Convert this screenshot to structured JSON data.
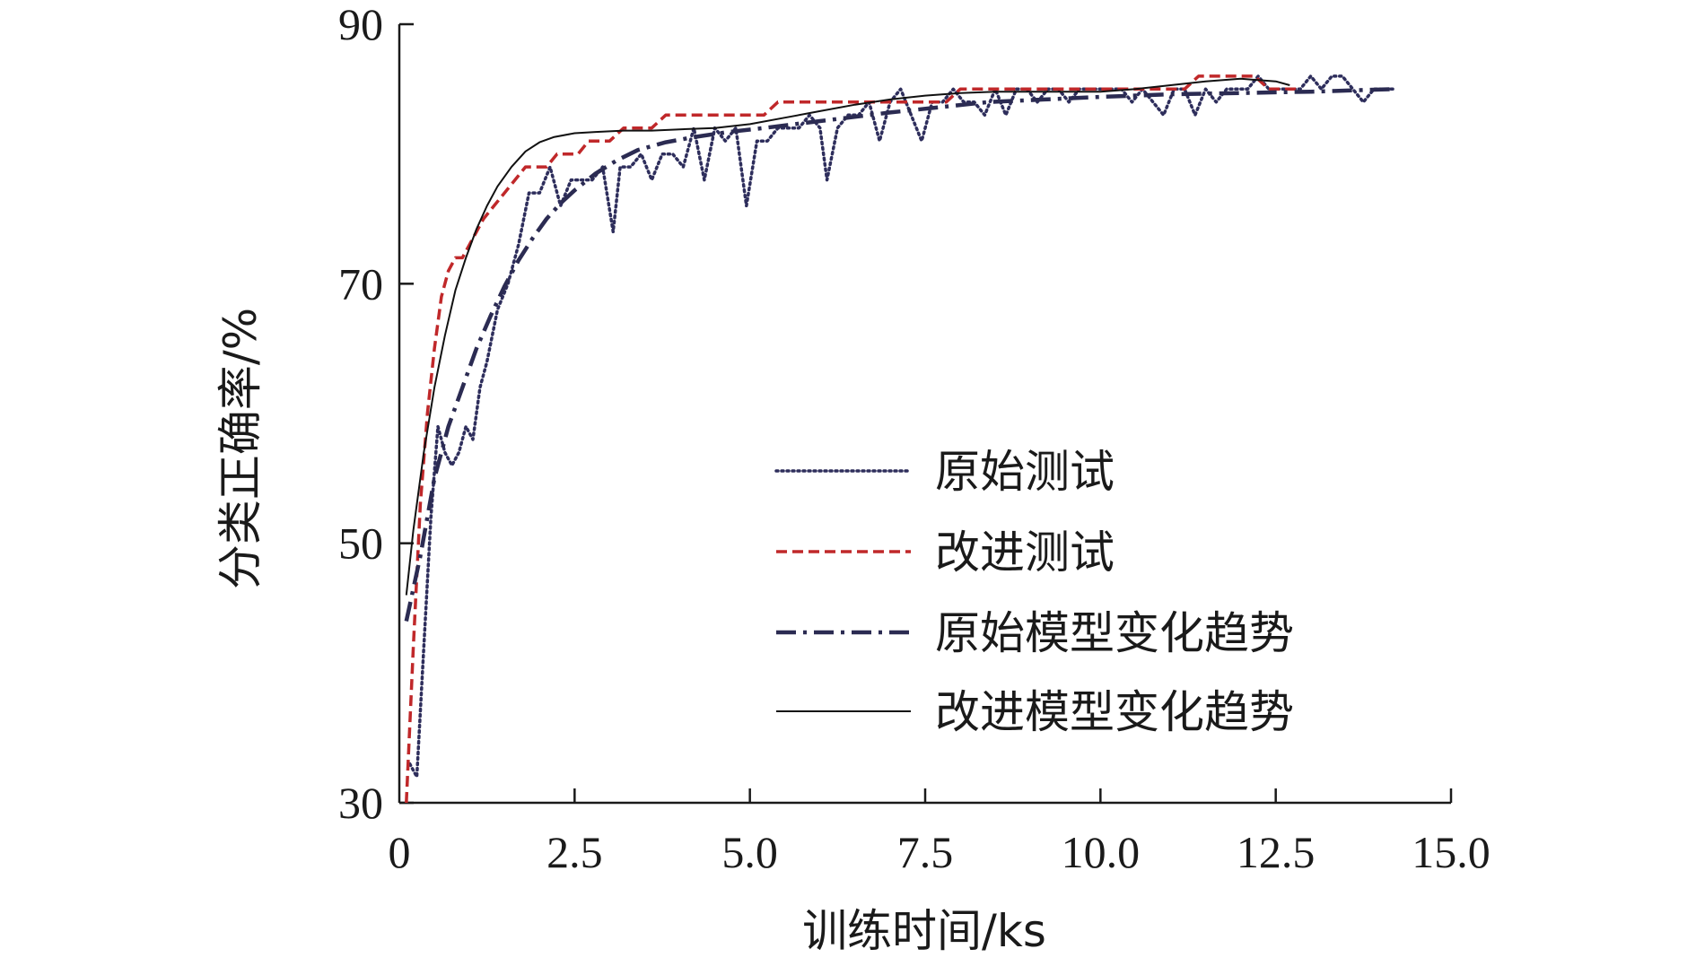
{
  "chart_data": {
    "type": "line",
    "title": "",
    "xlabel": "训练时间/ks",
    "ylabel": "分类正确率/%",
    "xlim": [
      0,
      15
    ],
    "ylim": [
      30,
      90
    ],
    "x_ticks": [
      0,
      2.5,
      5,
      7.5,
      10,
      12.5,
      15
    ],
    "x_tick_labels": [
      "0",
      "2.5",
      "5.0",
      "7.5",
      "10.0",
      "12.5",
      "15.0"
    ],
    "y_ticks": [
      30,
      50,
      70,
      90
    ],
    "y_tick_labels": [
      "30",
      "50",
      "70",
      "90"
    ],
    "grid": false,
    "legend_position": "center-right",
    "series": [
      {
        "name": "原始测试",
        "style": "dotted",
        "color": "#2e2e5c",
        "x": [
          0.15,
          0.25,
          0.35,
          0.45,
          0.55,
          0.65,
          0.75,
          0.85,
          0.95,
          1.05,
          1.15,
          1.25,
          1.4,
          1.55,
          1.7,
          1.85,
          2.0,
          2.15,
          2.3,
          2.45,
          2.6,
          2.75,
          2.9,
          3.05,
          3.15,
          3.3,
          3.45,
          3.6,
          3.75,
          3.9,
          4.05,
          4.2,
          4.35,
          4.5,
          4.65,
          4.8,
          4.95,
          5.1,
          5.25,
          5.4,
          5.55,
          5.7,
          5.85,
          6.0,
          6.1,
          6.25,
          6.4,
          6.55,
          6.7,
          6.85,
          7.0,
          7.15,
          7.3,
          7.45,
          7.6,
          7.75,
          7.9,
          8.05,
          8.2,
          8.35,
          8.5,
          8.65,
          8.8,
          8.95,
          9.1,
          9.25,
          9.4,
          9.55,
          9.7,
          9.85,
          10.0,
          10.15,
          10.3,
          10.45,
          10.6,
          10.75,
          10.9,
          11.05,
          11.2,
          11.35,
          11.5,
          11.65,
          11.8,
          11.95,
          12.1,
          12.25,
          12.4,
          12.55,
          12.7,
          12.85,
          13.0,
          13.15,
          13.3,
          13.45,
          13.6,
          13.75,
          13.9,
          14.05,
          14.2
        ],
        "y": [
          33,
          32,
          42,
          52,
          59,
          57,
          56,
          57,
          59,
          58,
          62,
          64,
          68,
          70,
          73,
          77,
          77,
          79,
          76,
          78,
          78,
          78,
          79,
          74,
          79,
          79,
          80,
          78,
          80,
          80,
          79,
          82,
          78,
          82,
          81,
          82,
          76,
          81,
          81,
          82,
          82,
          82,
          83,
          82,
          78,
          82,
          83,
          83,
          84,
          81,
          84,
          85,
          83,
          81,
          84,
          84,
          85,
          84,
          84,
          83,
          85,
          83,
          85,
          85,
          84,
          85,
          85,
          84,
          85,
          85,
          85,
          85,
          85,
          84,
          85,
          84,
          83,
          85,
          85,
          83,
          85,
          84,
          85,
          85,
          85,
          86,
          85,
          85,
          85,
          85,
          86,
          85,
          86,
          86,
          85,
          84,
          85,
          85,
          85
        ]
      },
      {
        "name": "改进测试",
        "style": "dashed",
        "color": "#c0282a",
        "x": [
          0.1,
          0.2,
          0.3,
          0.4,
          0.5,
          0.6,
          0.7,
          0.8,
          0.9,
          1.0,
          1.1,
          1.2,
          1.35,
          1.5,
          1.65,
          1.8,
          1.95,
          2.1,
          2.25,
          2.4,
          2.55,
          2.7,
          2.85,
          3.0,
          3.2,
          3.4,
          3.6,
          3.8,
          4.0,
          4.2,
          4.4,
          4.6,
          4.8,
          5.0,
          5.2,
          5.4,
          5.6,
          5.8,
          6.0,
          6.2,
          6.4,
          6.6,
          6.8,
          7.0,
          7.2,
          7.4,
          7.6,
          7.8,
          8.0,
          8.2,
          8.4,
          8.6,
          8.8,
          9.0,
          9.2,
          9.4,
          9.6,
          9.8,
          10.0,
          10.2,
          10.4,
          10.6,
          10.8,
          11.0,
          11.2,
          11.4,
          11.6,
          11.8,
          12.0,
          12.2,
          12.4,
          12.6,
          12.8
        ],
        "y": [
          30,
          42,
          53,
          60,
          65,
          69,
          71,
          72,
          72,
          73,
          74,
          75,
          76,
          77,
          78,
          79,
          79,
          79,
          80,
          80,
          80,
          81,
          81,
          81,
          82,
          82,
          82,
          83,
          83,
          83,
          83,
          83,
          83,
          83,
          83,
          84,
          84,
          84,
          84,
          84,
          84,
          84,
          84,
          84,
          84,
          84,
          84,
          84,
          85,
          85,
          85,
          85,
          85,
          85,
          85,
          85,
          85,
          85,
          85,
          85,
          85,
          85,
          85,
          85,
          85,
          86,
          86,
          86,
          86,
          86,
          85,
          85,
          85
        ]
      },
      {
        "name": "原始模型变化趋势",
        "style": "dashdot",
        "color": "#2b2b52",
        "x": [
          0.1,
          0.3,
          0.5,
          0.7,
          0.9,
          1.1,
          1.3,
          1.5,
          1.7,
          1.9,
          2.1,
          2.3,
          2.5,
          2.8,
          3.1,
          3.4,
          3.8,
          4.2,
          4.7,
          5.2,
          5.8,
          6.4,
          7.0,
          7.7,
          8.4,
          9.2,
          10.0,
          11.0,
          12.0,
          13.0,
          14.2
        ],
        "y": [
          44,
          49,
          55,
          59,
          62,
          65,
          67.5,
          69.8,
          71.8,
          73.5,
          75,
          76.2,
          77.2,
          78.5,
          79.5,
          80.3,
          80.9,
          81.3,
          81.7,
          82,
          82.4,
          82.8,
          83.2,
          83.6,
          84,
          84.2,
          84.4,
          84.6,
          84.7,
          84.8,
          85
        ]
      },
      {
        "name": "改进模型变化趋势",
        "style": "solid",
        "color": "#111111",
        "x": [
          0.1,
          0.2,
          0.35,
          0.5,
          0.65,
          0.8,
          0.95,
          1.1,
          1.25,
          1.4,
          1.6,
          1.8,
          2.0,
          2.2,
          2.5,
          2.8,
          3.2,
          3.6,
          4.0,
          4.5,
          5.0,
          5.5,
          6.0,
          6.5,
          7.0,
          7.5,
          8.0,
          8.5,
          9.0,
          9.5,
          10.0,
          10.5,
          11.0,
          11.5,
          12.0,
          12.5,
          12.7
        ],
        "y": [
          46,
          51,
          57,
          62,
          66,
          69.5,
          72,
          74.2,
          76,
          77.5,
          79,
          80.2,
          80.9,
          81.3,
          81.6,
          81.7,
          81.8,
          81.8,
          81.9,
          82,
          82.3,
          82.8,
          83.3,
          83.8,
          84.2,
          84.5,
          84.7,
          84.8,
          84.8,
          84.8,
          84.8,
          85,
          85.3,
          85.6,
          85.8,
          85.6,
          85.3
        ]
      }
    ]
  }
}
